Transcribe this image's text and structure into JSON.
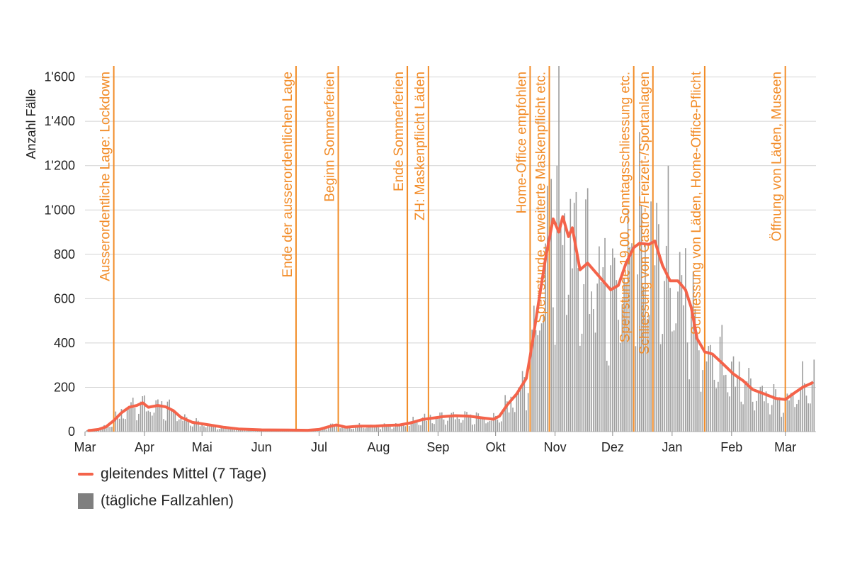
{
  "chart_data": {
    "type": "bar+line",
    "title": "",
    "ylabel": "Anzahl Fälle",
    "xlabel": "",
    "ylim": [
      0,
      1650
    ],
    "y_ticks": [
      {
        "v": 0,
        "label": "0"
      },
      {
        "v": 200,
        "label": "200"
      },
      {
        "v": 400,
        "label": "400"
      },
      {
        "v": 600,
        "label": "600"
      },
      {
        "v": 800,
        "label": "800"
      },
      {
        "v": 1000,
        "label": "1'000"
      },
      {
        "v": 1200,
        "label": "1'200"
      },
      {
        "v": 1400,
        "label": "1'400"
      },
      {
        "v": 1600,
        "label": "1'600"
      }
    ],
    "x_start": "2020-03-01",
    "x_end": "2021-03-17",
    "x_ticks": [
      {
        "date": "2020-03-01",
        "label": "Mar"
      },
      {
        "date": "2020-04-01",
        "label": "Apr"
      },
      {
        "date": "2020-05-01",
        "label": "Mai"
      },
      {
        "date": "2020-06-01",
        "label": "Jun"
      },
      {
        "date": "2020-07-01",
        "label": "Jul"
      },
      {
        "date": "2020-08-01",
        "label": "Aug"
      },
      {
        "date": "2020-09-01",
        "label": "Sep"
      },
      {
        "date": "2020-10-01",
        "label": "Okt"
      },
      {
        "date": "2020-11-01",
        "label": "Nov"
      },
      {
        "date": "2020-12-01",
        "label": "Dez"
      },
      {
        "date": "2021-01-01",
        "label": "Jan"
      },
      {
        "date": "2021-02-01",
        "label": "Feb"
      },
      {
        "date": "2021-03-01",
        "label": "Mar"
      }
    ],
    "grid": true,
    "series": [
      {
        "name": "gleitendes Mittel (7 Tage)",
        "type": "line",
        "color": "#f4634a",
        "points": [
          [
            "2020-03-03",
            5
          ],
          [
            "2020-03-08",
            10
          ],
          [
            "2020-03-12",
            22
          ],
          [
            "2020-03-16",
            50
          ],
          [
            "2020-03-20",
            85
          ],
          [
            "2020-03-24",
            110
          ],
          [
            "2020-03-28",
            118
          ],
          [
            "2020-03-31",
            130
          ],
          [
            "2020-04-03",
            110
          ],
          [
            "2020-04-08",
            118
          ],
          [
            "2020-04-12",
            112
          ],
          [
            "2020-04-16",
            95
          ],
          [
            "2020-04-20",
            65
          ],
          [
            "2020-04-26",
            42
          ],
          [
            "2020-05-05",
            30
          ],
          [
            "2020-05-12",
            20
          ],
          [
            "2020-05-20",
            12
          ],
          [
            "2020-06-01",
            8
          ],
          [
            "2020-06-15",
            7
          ],
          [
            "2020-06-25",
            6
          ],
          [
            "2020-07-01",
            10
          ],
          [
            "2020-07-06",
            22
          ],
          [
            "2020-07-10",
            30
          ],
          [
            "2020-07-15",
            20
          ],
          [
            "2020-07-22",
            25
          ],
          [
            "2020-07-30",
            25
          ],
          [
            "2020-08-05",
            28
          ],
          [
            "2020-08-12",
            30
          ],
          [
            "2020-08-18",
            40
          ],
          [
            "2020-08-24",
            55
          ],
          [
            "2020-08-30",
            62
          ],
          [
            "2020-09-04",
            68
          ],
          [
            "2020-09-10",
            72
          ],
          [
            "2020-09-17",
            70
          ],
          [
            "2020-09-24",
            62
          ],
          [
            "2020-09-30",
            56
          ],
          [
            "2020-10-03",
            70
          ],
          [
            "2020-10-07",
            120
          ],
          [
            "2020-10-12",
            170
          ],
          [
            "2020-10-17",
            240
          ],
          [
            "2020-10-20",
            390
          ],
          [
            "2020-10-23",
            560
          ],
          [
            "2020-10-27",
            780
          ],
          [
            "2020-10-31",
            960
          ],
          [
            "2020-11-03",
            900
          ],
          [
            "2020-11-05",
            970
          ],
          [
            "2020-11-08",
            880
          ],
          [
            "2020-11-10",
            920
          ],
          [
            "2020-11-14",
            730
          ],
          [
            "2020-11-18",
            760
          ],
          [
            "2020-11-22",
            720
          ],
          [
            "2020-11-26",
            680
          ],
          [
            "2020-11-30",
            640
          ],
          [
            "2020-12-04",
            660
          ],
          [
            "2020-12-08",
            760
          ],
          [
            "2020-12-12",
            830
          ],
          [
            "2020-12-15",
            850
          ],
          [
            "2020-12-20",
            845
          ],
          [
            "2020-12-23",
            860
          ],
          [
            "2020-12-27",
            750
          ],
          [
            "2020-12-31",
            680
          ],
          [
            "2021-01-04",
            680
          ],
          [
            "2021-01-08",
            640
          ],
          [
            "2021-01-11",
            560
          ],
          [
            "2021-01-14",
            420
          ],
          [
            "2021-01-18",
            360
          ],
          [
            "2021-01-22",
            350
          ],
          [
            "2021-01-27",
            310
          ],
          [
            "2021-02-02",
            260
          ],
          [
            "2021-02-07",
            230
          ],
          [
            "2021-02-12",
            190
          ],
          [
            "2021-02-18",
            170
          ],
          [
            "2021-02-24",
            150
          ],
          [
            "2021-03-01",
            145
          ],
          [
            "2021-03-05",
            170
          ],
          [
            "2021-03-10",
            200
          ],
          [
            "2021-03-15",
            220
          ]
        ]
      },
      {
        "name": "(tägliche Fallzahlen)",
        "type": "bar",
        "color": "#9e9e9e",
        "note": "daily case bars; values follow the smoothed line with day-to-day variation and peaks around 1'650 and 1'200 in early November 2020"
      }
    ],
    "annotations": [
      {
        "date": "2020-03-16",
        "text": "Ausserordentliche Lage: Lockdown"
      },
      {
        "date": "2020-06-19",
        "text": "Ende der ausserordentlichen Lage"
      },
      {
        "date": "2020-07-11",
        "text": "Beginn Sommerferien"
      },
      {
        "date": "2020-08-16",
        "text": "Ende Sommerferien"
      },
      {
        "date": "2020-08-27",
        "text": "ZH: Maskenpflicht Läden"
      },
      {
        "date": "2020-10-19",
        "text": "Home-Office empfohlen"
      },
      {
        "date": "2020-10-29",
        "text": "Sperrstunde, erweiterte Maskenpflicht etc."
      },
      {
        "date": "2020-12-12",
        "text": "Sperrstunde 19.00, Sonntagsschliessung etc."
      },
      {
        "date": "2020-12-22",
        "text": "Schliessung von Gastro-/Freizeit-/Sportanlagen"
      },
      {
        "date": "2021-01-18",
        "text": "Schliessung von Läden, Home-Office-Pflicht"
      },
      {
        "date": "2021-03-01",
        "text": "Öffnung von Läden, Museen"
      }
    ],
    "annotation_color": "#f28c28",
    "legend": {
      "position": "bottom-left",
      "line_label": "gleitendes Mittel (7 Tage)",
      "bar_label": "(tägliche Fallzahlen)"
    }
  }
}
